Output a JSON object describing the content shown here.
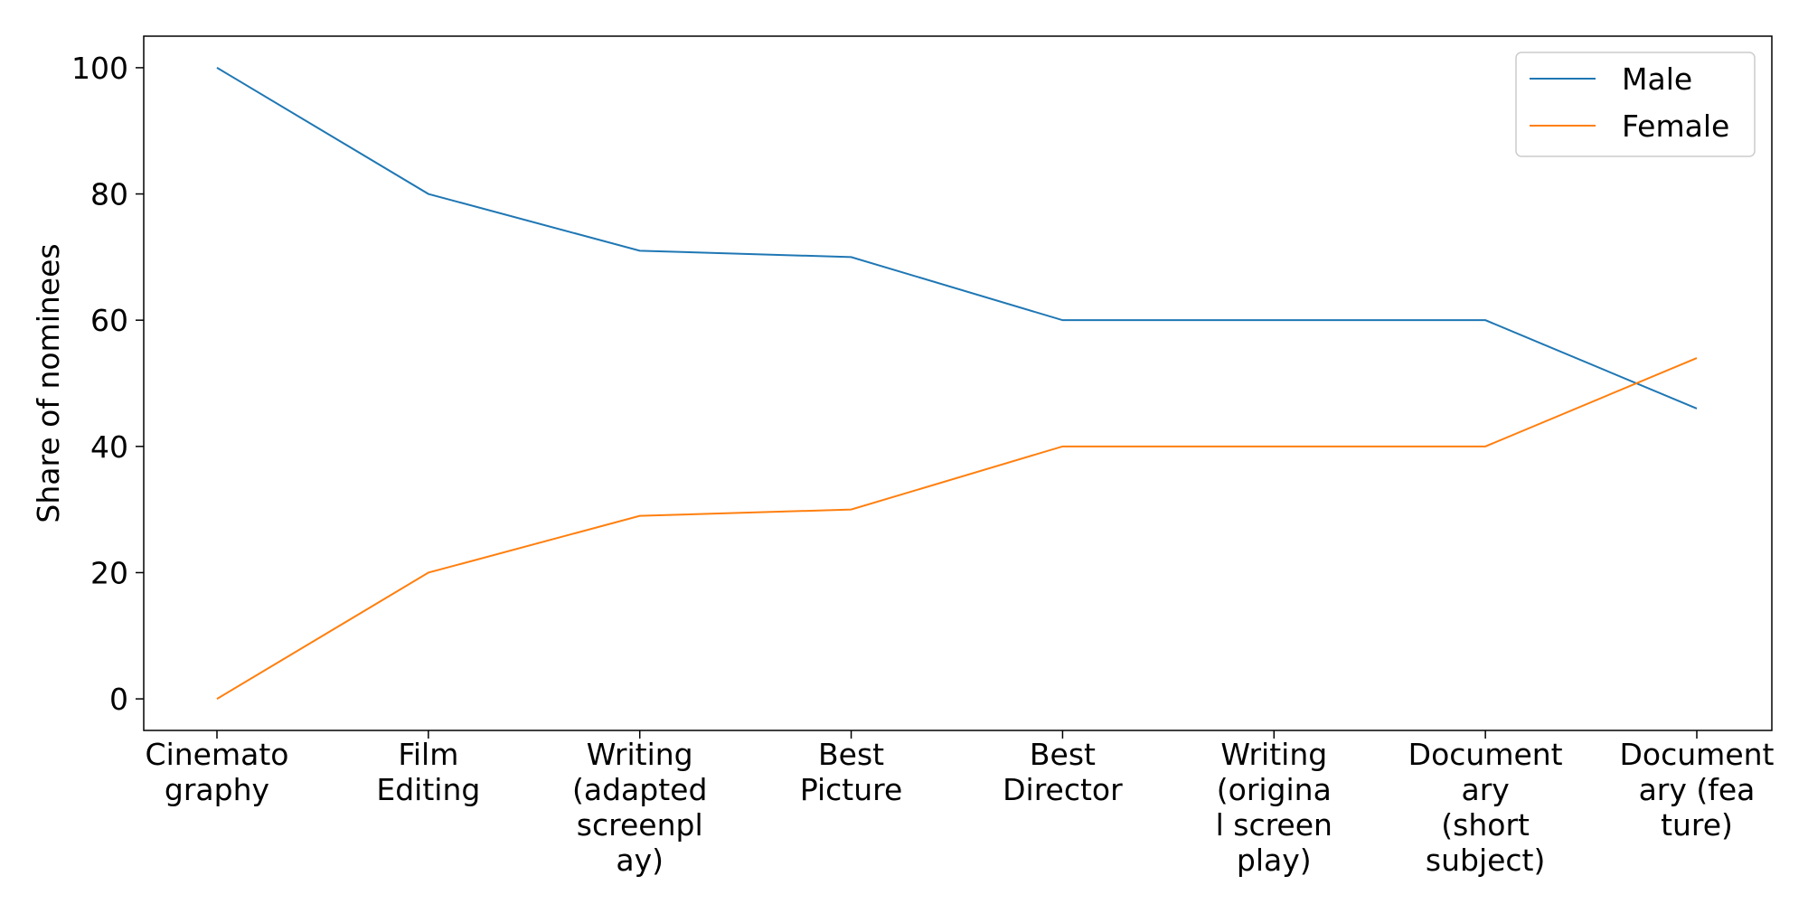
{
  "chart_data": {
    "type": "line",
    "title": "",
    "xlabel": "",
    "ylabel": "Share of nominees",
    "ylim": [
      -5,
      105
    ],
    "yticks": [
      0,
      20,
      40,
      60,
      80,
      100
    ],
    "grid": false,
    "legend_position": "top-right",
    "categories": [
      [
        "Cinemato",
        "graphy"
      ],
      [
        "Film",
        "Editing"
      ],
      [
        "Writing",
        "(adapted",
        "screenpl",
        "ay)"
      ],
      [
        "Best",
        "Picture"
      ],
      [
        "Best",
        "Director"
      ],
      [
        "Writing",
        "(origina",
        "l screen",
        "play)"
      ],
      [
        "Document",
        "ary",
        "(short",
        "subject)"
      ],
      [
        "Document",
        "ary (fea",
        "ture)"
      ]
    ],
    "series": [
      {
        "name": "Male",
        "color": "#1f77b4",
        "values": [
          100,
          80,
          71,
          70,
          60,
          60,
          60,
          46
        ]
      },
      {
        "name": "Female",
        "color": "#ff7f0e",
        "values": [
          0,
          20,
          29,
          30,
          40,
          40,
          40,
          54
        ]
      }
    ]
  }
}
